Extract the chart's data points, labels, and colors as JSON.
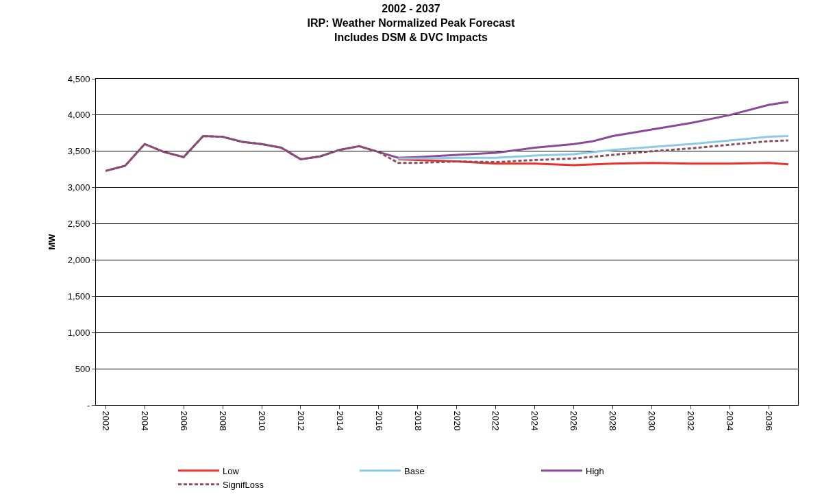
{
  "chart_data": {
    "type": "line",
    "title": "2002 - 2037\nIRP: Weather Normalized Peak Forecast\nIncludes DSM & DVC Impacts",
    "ylabel": "MW",
    "xlim": [
      2001.5,
      2037.5
    ],
    "xticks": [
      2002,
      2004,
      2006,
      2008,
      2010,
      2012,
      2014,
      2016,
      2018,
      2020,
      2022,
      2024,
      2026,
      2028,
      2030,
      2032,
      2034,
      2036
    ],
    "ylim": [
      0,
      4500
    ],
    "yticks": [
      {
        "value": 0,
        "label": "-"
      },
      {
        "value": 500,
        "label": "500"
      },
      {
        "value": 1000,
        "label": "1,000"
      },
      {
        "value": 1500,
        "label": "1,500"
      },
      {
        "value": 2000,
        "label": "2,000"
      },
      {
        "value": 2500,
        "label": "2,500"
      },
      {
        "value": 3000,
        "label": "3,000"
      },
      {
        "value": 3500,
        "label": "3,500"
      },
      {
        "value": 4000,
        "label": "4,000"
      },
      {
        "value": 4500,
        "label": "4,500"
      }
    ],
    "grid": "y",
    "legend": "bottom",
    "marker": "none",
    "series": [
      {
        "name": "Low",
        "color": "#e8322e",
        "line_style": "solid",
        "x": [
          2017,
          2018,
          2020,
          2022,
          2024,
          2026,
          2028,
          2030,
          2032,
          2034,
          2036,
          2037
        ],
        "values": [
          3390,
          3380,
          3360,
          3330,
          3330,
          3310,
          3330,
          3340,
          3330,
          3330,
          3340,
          3320
        ]
      },
      {
        "name": "Base",
        "color": "#8ecae6",
        "line_style": "solid",
        "x": [
          2017,
          2018,
          2020,
          2022,
          2024,
          2026,
          2028,
          2030,
          2032,
          2034,
          2036,
          2037
        ],
        "values": [
          3400,
          3400,
          3410,
          3410,
          3440,
          3460,
          3520,
          3560,
          3600,
          3650,
          3700,
          3710
        ]
      },
      {
        "name": "High",
        "color": "#8b4a97",
        "line_style": "solid",
        "x": [
          2002,
          2003,
          2004,
          2005,
          2006,
          2007,
          2008,
          2009,
          2010,
          2011,
          2012,
          2013,
          2014,
          2015,
          2016,
          2017,
          2018,
          2020,
          2022,
          2024,
          2026,
          2027,
          2028,
          2030,
          2032,
          2034,
          2036,
          2037
        ],
        "values": [
          3230,
          3300,
          3600,
          3490,
          3420,
          3710,
          3700,
          3630,
          3600,
          3550,
          3390,
          3430,
          3520,
          3570,
          3490,
          3410,
          3420,
          3450,
          3480,
          3550,
          3600,
          3640,
          3710,
          3800,
          3890,
          4000,
          4140,
          4180
        ]
      },
      {
        "name": "SignifLoss",
        "color": "#8a4f5e",
        "line_style": "dashed",
        "x": [
          2002,
          2003,
          2004,
          2005,
          2006,
          2007,
          2008,
          2009,
          2010,
          2011,
          2012,
          2013,
          2014,
          2015,
          2016,
          2017,
          2018,
          2020,
          2022,
          2024,
          2026,
          2028,
          2030,
          2032,
          2034,
          2036,
          2037
        ],
        "values": [
          3230,
          3300,
          3600,
          3490,
          3420,
          3710,
          3700,
          3630,
          3600,
          3550,
          3390,
          3430,
          3520,
          3570,
          3490,
          3340,
          3340,
          3360,
          3350,
          3380,
          3400,
          3450,
          3500,
          3540,
          3590,
          3640,
          3650
        ]
      }
    ]
  }
}
